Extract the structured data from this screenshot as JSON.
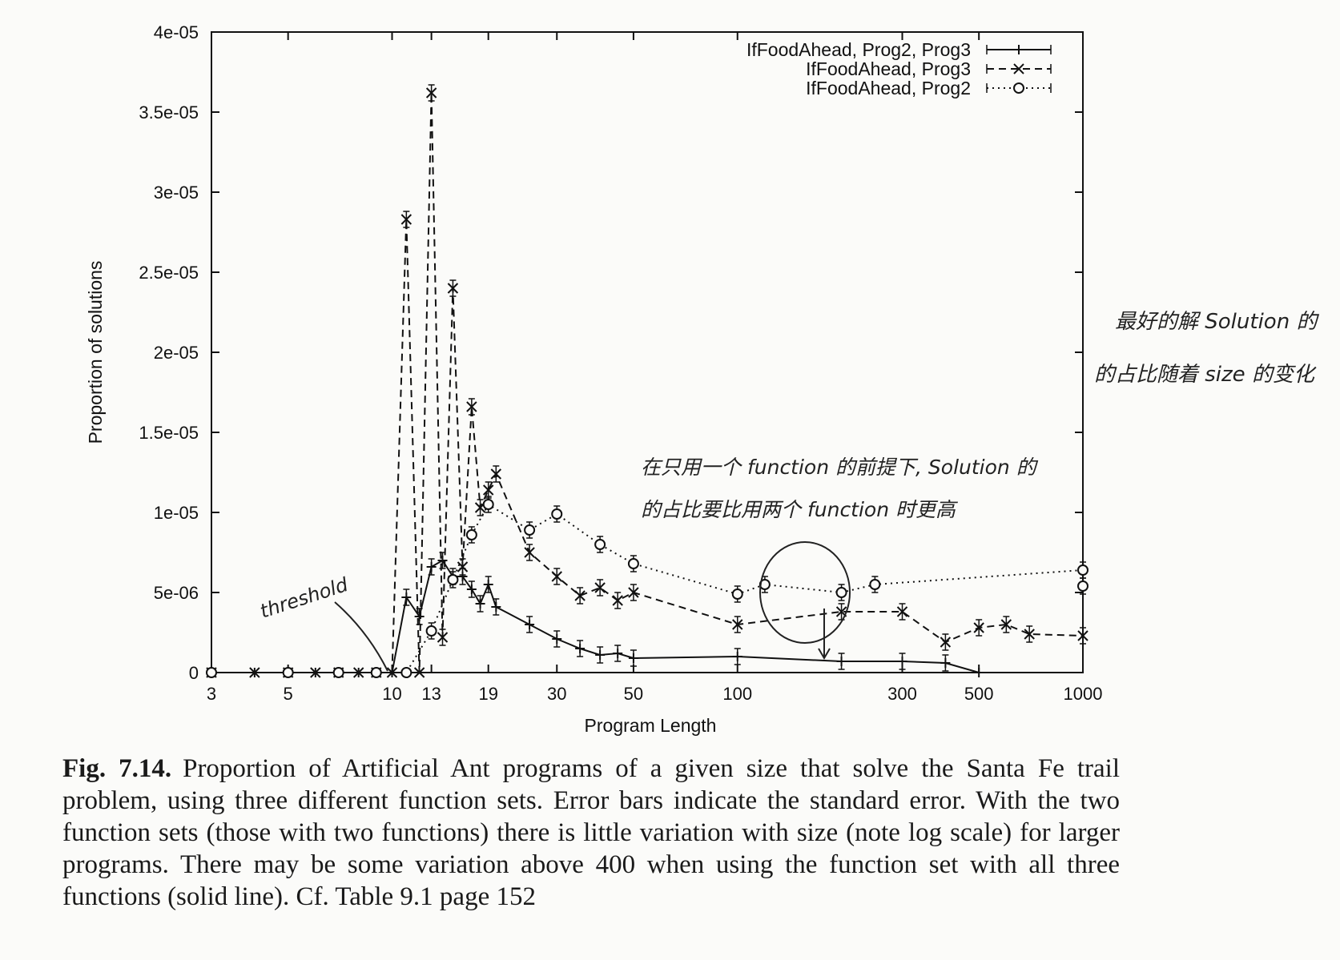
{
  "chart_data": {
    "type": "line",
    "xlabel": "Program Length",
    "ylabel": "Proportion of solutions",
    "x_scale": "log",
    "xlim": [
      3,
      1000
    ],
    "ylim": [
      0,
      4e-05
    ],
    "x_ticks": [
      3,
      5,
      10,
      13,
      19,
      30,
      50,
      100,
      300,
      500,
      1000
    ],
    "y_ticks": [
      {
        "value": 0,
        "label": "0"
      },
      {
        "value": 5e-06,
        "label": "5e-06"
      },
      {
        "value": 1e-05,
        "label": "1e-05"
      },
      {
        "value": 1.5e-05,
        "label": "1.5e-05"
      },
      {
        "value": 2e-05,
        "label": "2e-05"
      },
      {
        "value": 2.5e-05,
        "label": "2.5e-05"
      },
      {
        "value": 3e-05,
        "label": "3e-05"
      },
      {
        "value": 3.5e-05,
        "label": "3.5e-05"
      },
      {
        "value": 4e-05,
        "label": "4e-05"
      }
    ],
    "legend_position": "top-right",
    "series": [
      {
        "name": "IfFoodAhead, Prog2, Prog3",
        "style": "solid",
        "marker": "plus",
        "points": [
          {
            "x": 3,
            "y": 0
          },
          {
            "x": 4,
            "y": 0
          },
          {
            "x": 5,
            "y": 0
          },
          {
            "x": 6,
            "y": 0
          },
          {
            "x": 7,
            "y": 0
          },
          {
            "x": 8,
            "y": 0
          },
          {
            "x": 9,
            "y": 0
          },
          {
            "x": 10,
            "y": 0
          },
          {
            "x": 11,
            "y": 4.7e-06
          },
          {
            "x": 12,
            "y": 3.5e-06
          },
          {
            "x": 13,
            "y": 6.6e-06
          },
          {
            "x": 14,
            "y": 7e-06
          },
          {
            "x": 15,
            "y": 6e-06
          },
          {
            "x": 16,
            "y": 6e-06
          },
          {
            "x": 17,
            "y": 5.2e-06
          },
          {
            "x": 18,
            "y": 4.3e-06
          },
          {
            "x": 19,
            "y": 5.5e-06
          },
          {
            "x": 20,
            "y": 4.1e-06
          },
          {
            "x": 25,
            "y": 3e-06
          },
          {
            "x": 30,
            "y": 2.1e-06
          },
          {
            "x": 35,
            "y": 1.5e-06
          },
          {
            "x": 40,
            "y": 1.1e-06
          },
          {
            "x": 45,
            "y": 1.2e-06
          },
          {
            "x": 50,
            "y": 9e-07
          },
          {
            "x": 100,
            "y": 1e-06
          },
          {
            "x": 200,
            "y": 7e-07
          },
          {
            "x": 300,
            "y": 7e-07
          },
          {
            "x": 400,
            "y": 6e-07
          },
          {
            "x": 500,
            "y": 0
          }
        ]
      },
      {
        "name": "IfFoodAhead, Prog3",
        "style": "dashed",
        "marker": "cross",
        "points": [
          {
            "x": 3,
            "y": 0
          },
          {
            "x": 4,
            "y": 0
          },
          {
            "x": 5,
            "y": 0
          },
          {
            "x": 6,
            "y": 0
          },
          {
            "x": 7,
            "y": 0
          },
          {
            "x": 8,
            "y": 0
          },
          {
            "x": 9,
            "y": 0
          },
          {
            "x": 10,
            "y": 0
          },
          {
            "x": 11,
            "y": 2.83e-05
          },
          {
            "x": 12,
            "y": 0
          },
          {
            "x": 13,
            "y": 3.62e-05
          },
          {
            "x": 14,
            "y": 2.2e-06
          },
          {
            "x": 15,
            "y": 2.4e-05
          },
          {
            "x": 16,
            "y": 6.6e-06
          },
          {
            "x": 17,
            "y": 1.66e-05
          },
          {
            "x": 18,
            "y": 1.03e-05
          },
          {
            "x": 19,
            "y": 1.14e-05
          },
          {
            "x": 20,
            "y": 1.24e-05
          },
          {
            "x": 25,
            "y": 7.5e-06
          },
          {
            "x": 30,
            "y": 6e-06
          },
          {
            "x": 35,
            "y": 4.8e-06
          },
          {
            "x": 40,
            "y": 5.3e-06
          },
          {
            "x": 45,
            "y": 4.5e-06
          },
          {
            "x": 50,
            "y": 5e-06
          },
          {
            "x": 100,
            "y": 3e-06
          },
          {
            "x": 200,
            "y": 3.8e-06
          },
          {
            "x": 300,
            "y": 3.8e-06
          },
          {
            "x": 400,
            "y": 1.9e-06
          },
          {
            "x": 500,
            "y": 2.8e-06
          },
          {
            "x": 600,
            "y": 3e-06
          },
          {
            "x": 700,
            "y": 2.4e-06
          },
          {
            "x": 1000,
            "y": 2.3e-06
          }
        ]
      },
      {
        "name": "IfFoodAhead, Prog2",
        "style": "dotted",
        "marker": "circle",
        "points": [
          {
            "x": 3,
            "y": 0
          },
          {
            "x": 5,
            "y": 0
          },
          {
            "x": 7,
            "y": 0
          },
          {
            "x": 9,
            "y": 0
          },
          {
            "x": 11,
            "y": 0
          },
          {
            "x": 13,
            "y": 2.6e-06
          },
          {
            "x": 15,
            "y": 5.8e-06
          },
          {
            "x": 17,
            "y": 8.6e-06
          },
          {
            "x": 19,
            "y": 1.05e-05
          },
          {
            "x": 25,
            "y": 8.9e-06
          },
          {
            "x": 30,
            "y": 9.9e-06
          },
          {
            "x": 40,
            "y": 8e-06
          },
          {
            "x": 50,
            "y": 6.8e-06
          },
          {
            "x": 100,
            "y": 4.9e-06
          },
          {
            "x": 120,
            "y": 5.5e-06
          },
          {
            "x": 200,
            "y": 5e-06
          },
          {
            "x": 250,
            "y": 5.5e-06
          },
          {
            "x": 1000,
            "y": 6.4e-06
          },
          {
            "x": 1000,
            "y": 5.4e-06
          }
        ]
      }
    ],
    "annotations": [
      {
        "text": "最好的解 Solution 的"
      },
      {
        "text": "的占比随着 size 的变化"
      },
      {
        "text": "在只用一个 function 的前提下, Solution 的"
      },
      {
        "text": "的占比要比用两个 function 时更高"
      },
      {
        "text": "threshold"
      }
    ]
  },
  "caption": {
    "label": "Fig. 7.14.",
    "text": "Proportion of Artificial Ant programs of a given size that solve the Santa Fe trail problem, using three different function sets. Error bars indicate the standard error. With the two function sets (those with two functions) there is little variation with size (note log scale) for larger programs. There may be some variation above 400 when using the function set with all three functions (solid line). Cf. Table 9.1 page 152"
  }
}
